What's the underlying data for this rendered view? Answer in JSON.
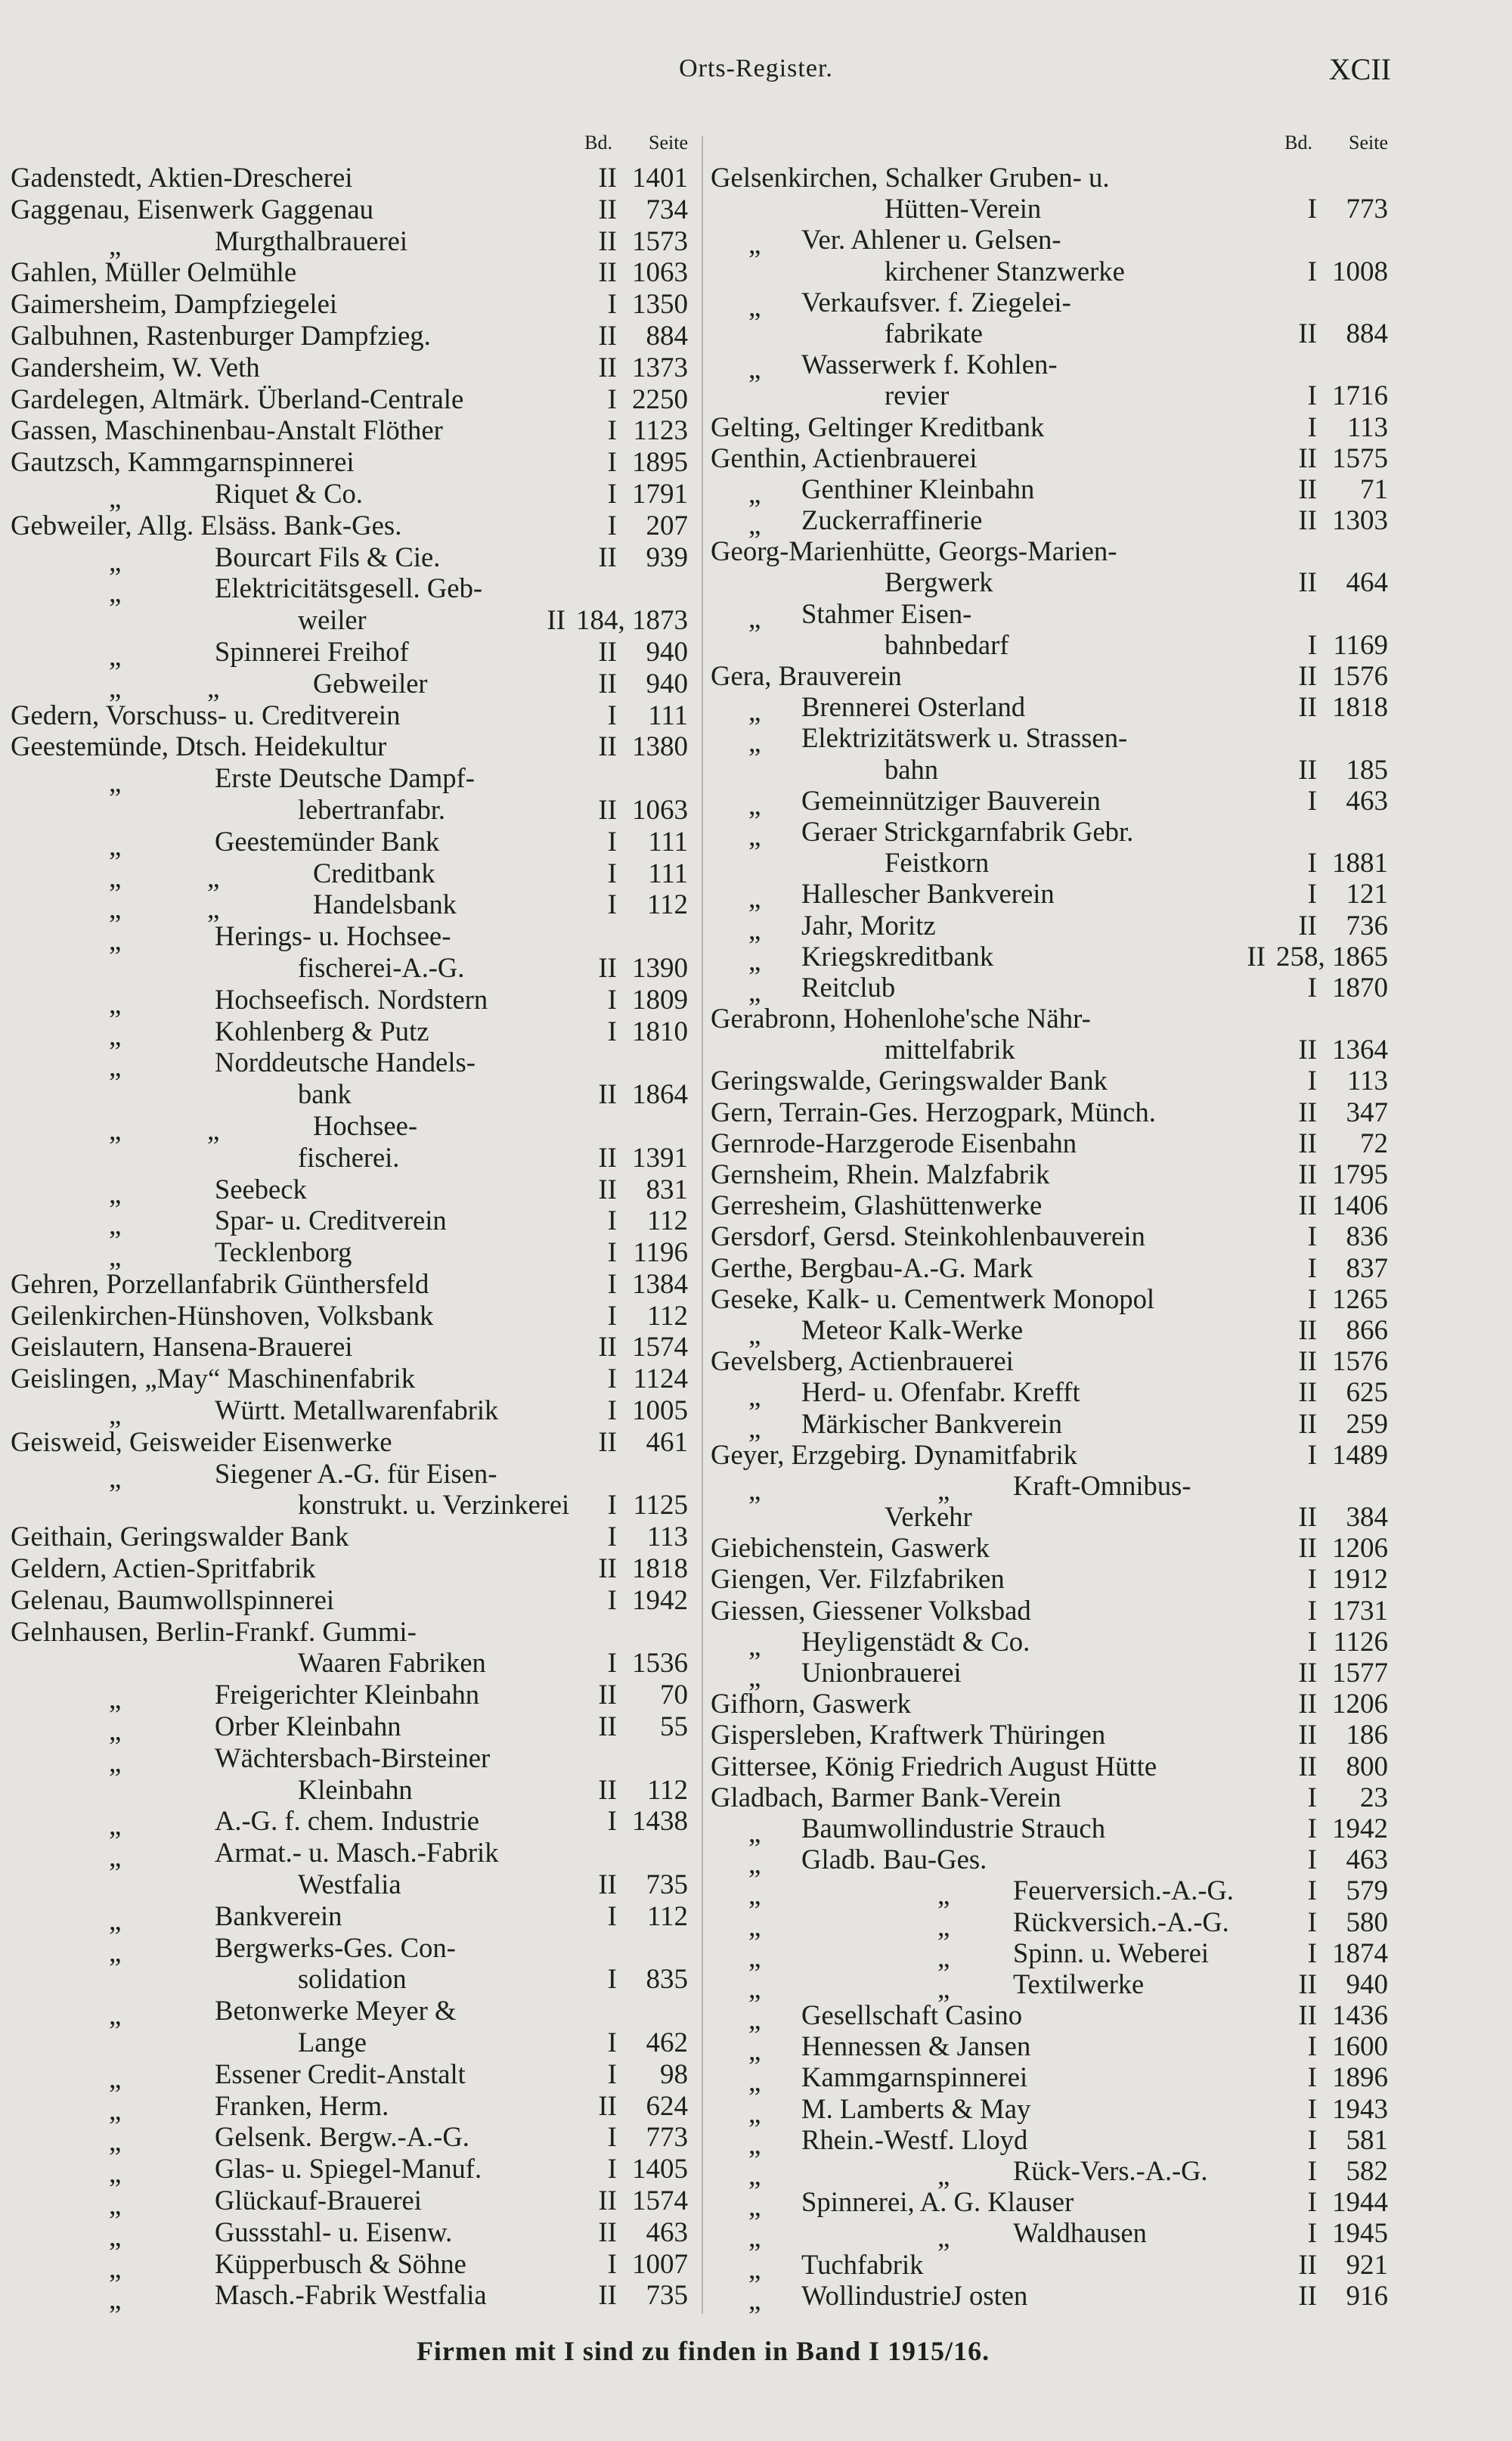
{
  "header": {
    "title": "Orts-Register.",
    "page_number": "XCII"
  },
  "column_headers": {
    "bd": "Bd.",
    "seite": "Seite"
  },
  "left": [
    {
      "t": "Gadenstedt, Aktien-Drescherei",
      "bd": "II",
      "s": "1401"
    },
    {
      "t": "Gaggenau, Eisenwerk Gaggenau",
      "bd": "II",
      "s": "734"
    },
    {
      "t": "Murgthalbrauerei",
      "bd": "II",
      "s": "1573",
      "d": 1
    },
    {
      "t": "Gahlen, Müller Oelmühle",
      "bd": "II",
      "s": "1063"
    },
    {
      "t": "Gaimersheim, Dampfziegelei",
      "bd": "I",
      "s": "1350"
    },
    {
      "t": "Galbuhnen, Rastenburger Dampfzieg.",
      "bd": "II",
      "s": "884"
    },
    {
      "t": "Gandersheim, W. Veth",
      "bd": "II",
      "s": "1373"
    },
    {
      "t": "Gardelegen, Altmärk. Überland-Centrale",
      "bd": "I",
      "s": "2250"
    },
    {
      "t": "Gassen, Maschinenbau-Anstalt Flöther",
      "bd": "I",
      "s": "1123"
    },
    {
      "t": "Gautzsch, Kammgarnspinnerei",
      "bd": "I",
      "s": "1895"
    },
    {
      "t": "Riquet & Co.",
      "bd": "I",
      "s": "1791",
      "d": 1
    },
    {
      "t": "Gebweiler, Allg. Elsäss. Bank-Ges.",
      "bd": "I",
      "s": "207"
    },
    {
      "t": "Bourcart Fils & Cie.",
      "bd": "II",
      "s": "939",
      "d": 1
    },
    {
      "t": "Elektricitätsgesell. Geb-",
      "d": 1
    },
    {
      "t": "weiler",
      "bd": "II",
      "s": "184, 1873",
      "c": true
    },
    {
      "t": "Spinnerei Freihof",
      "bd": "II",
      "s": "940",
      "d": 1
    },
    {
      "t": "Gebweiler",
      "bd": "II",
      "s": "940",
      "d": 2
    },
    {
      "t": "Gedern, Vorschuss- u. Creditverein",
      "bd": "I",
      "s": "111"
    },
    {
      "t": "Geestemünde, Dtsch. Heidekultur",
      "bd": "II",
      "s": "1380"
    },
    {
      "t": "Erste Deutsche Dampf-",
      "d": 1
    },
    {
      "t": "lebertranfabr.",
      "bd": "II",
      "s": "1063",
      "c": true
    },
    {
      "t": "Geestemünder Bank",
      "bd": "I",
      "s": "111",
      "d": 1
    },
    {
      "t": "Creditbank",
      "bd": "I",
      "s": "111",
      "d": 2
    },
    {
      "t": "Handelsbank",
      "bd": "I",
      "s": "112",
      "d": 2
    },
    {
      "t": "Herings- u. Hochsee-",
      "d": 1
    },
    {
      "t": "fischerei-A.-G.",
      "bd": "II",
      "s": "1390",
      "c": true
    },
    {
      "t": "Hochseefisch. Nordstern",
      "bd": "I",
      "s": "1809",
      "d": 1
    },
    {
      "t": "Kohlenberg & Putz",
      "bd": "I",
      "s": "1810",
      "d": 1
    },
    {
      "t": "Norddeutsche Handels-",
      "d": 1
    },
    {
      "t": "bank",
      "bd": "II",
      "s": "1864",
      "c": true
    },
    {
      "t": "Hochsee-",
      "d": 2
    },
    {
      "t": "fischerei.",
      "bd": "II",
      "s": "1391",
      "c": true
    },
    {
      "t": "Seebeck",
      "bd": "II",
      "s": "831",
      "d": 1
    },
    {
      "t": "Spar- u. Creditverein",
      "bd": "I",
      "s": "112",
      "d": 1
    },
    {
      "t": "Tecklenborg",
      "bd": "I",
      "s": "1196",
      "d": 1
    },
    {
      "t": "Gehren, Porzellanfabrik Günthersfeld",
      "bd": "I",
      "s": "1384"
    },
    {
      "t": "Geilenkirchen-Hünshoven, Volksbank",
      "bd": "I",
      "s": "112"
    },
    {
      "t": "Geislautern, Hansena-Brauerei",
      "bd": "II",
      "s": "1574"
    },
    {
      "t": "Geislingen, „May“ Maschinenfabrik",
      "bd": "I",
      "s": "1124"
    },
    {
      "t": "Württ. Metallwarenfabrik",
      "bd": "I",
      "s": "1005",
      "d": 1
    },
    {
      "t": "Geisweid, Geisweider Eisenwerke",
      "bd": "II",
      "s": "461"
    },
    {
      "t": "Siegener A.-G. für Eisen-",
      "d": 1
    },
    {
      "t": "konstrukt. u. Verzinkerei",
      "bd": "I",
      "s": "1125",
      "c": true
    },
    {
      "t": "Geithain, Geringswalder Bank",
      "bd": "I",
      "s": "113"
    },
    {
      "t": "Geldern, Actien-Spritfabrik",
      "bd": "II",
      "s": "1818"
    },
    {
      "t": "Gelenau, Baumwollspinnerei",
      "bd": "I",
      "s": "1942"
    },
    {
      "t": "Gelnhausen, Berlin-Frankf. Gummi-"
    },
    {
      "t": "Waaren Fabriken",
      "bd": "I",
      "s": "1536",
      "c": true
    },
    {
      "t": "Freigerichter Kleinbahn",
      "bd": "II",
      "s": "70",
      "d": 1
    },
    {
      "t": "Orber Kleinbahn",
      "bd": "II",
      "s": "55",
      "d": 1
    },
    {
      "t": "Wächtersbach-Birsteiner",
      "d": 1
    },
    {
      "t": "Kleinbahn",
      "bd": "II",
      "s": "112",
      "c": true
    },
    {
      "t": "A.-G. f. chem. Industrie",
      "bd": "I",
      "s": "1438",
      "d": 1
    },
    {
      "t": "Armat.- u. Masch.-Fabrik",
      "d": 1
    },
    {
      "t": "Westfalia",
      "bd": "II",
      "s": "735",
      "c": true
    },
    {
      "t": "Bankverein",
      "bd": "I",
      "s": "112",
      "d": 1
    },
    {
      "t": "Bergwerks-Ges. Con-",
      "d": 1
    },
    {
      "t": "solidation",
      "bd": "I",
      "s": "835",
      "c": true
    },
    {
      "t": "Betonwerke Meyer &",
      "d": 1
    },
    {
      "t": "Lange",
      "bd": "I",
      "s": "462",
      "c": true
    },
    {
      "t": "Essener Credit-Anstalt",
      "bd": "I",
      "s": "98",
      "d": 1
    },
    {
      "t": "Franken, Herm.",
      "bd": "II",
      "s": "624",
      "d": 1
    },
    {
      "t": "Gelsenk. Bergw.-A.-G.",
      "bd": "I",
      "s": "773",
      "d": 1
    },
    {
      "t": "Glas- u. Spiegel-Manuf.",
      "bd": "I",
      "s": "1405",
      "d": 1
    },
    {
      "t": "Glückauf-Brauerei",
      "bd": "II",
      "s": "1574",
      "d": 1
    },
    {
      "t": "Gussstahl- u. Eisenw.",
      "bd": "II",
      "s": "463",
      "d": 1
    },
    {
      "t": "Küpperbusch & Söhne",
      "bd": "I",
      "s": "1007",
      "d": 1
    },
    {
      "t": "Masch.-Fabrik Westfalia",
      "bd": "II",
      "s": "735",
      "d": 1
    }
  ],
  "right": [
    {
      "t": "Gelsenkirchen, Schalker Gruben- u."
    },
    {
      "t": "Hütten-Verein",
      "bd": "I",
      "s": "773",
      "c": true
    },
    {
      "t": "Ver. Ahlener u. Gelsen-",
      "d": 1
    },
    {
      "t": "kirchener Stanzwerke",
      "bd": "I",
      "s": "1008",
      "c": true
    },
    {
      "t": "Verkaufsver. f. Ziegelei-",
      "d": 1
    },
    {
      "t": "fabrikate",
      "bd": "II",
      "s": "884",
      "c": true
    },
    {
      "t": "Wasserwerk f. Kohlen-",
      "d": 1
    },
    {
      "t": "revier",
      "bd": "I",
      "s": "1716",
      "c": true
    },
    {
      "t": "Gelting, Geltinger Kreditbank",
      "bd": "I",
      "s": "113"
    },
    {
      "t": "Genthin, Actienbrauerei",
      "bd": "II",
      "s": "1575"
    },
    {
      "t": "Genthiner Kleinbahn",
      "bd": "II",
      "s": "71",
      "d": 1
    },
    {
      "t": "Zuckerraffinerie",
      "bd": "II",
      "s": "1303",
      "d": 1
    },
    {
      "t": "Georg-Marienhütte, Georgs-Marien-"
    },
    {
      "t": "Bergwerk",
      "bd": "II",
      "s": "464",
      "c": true
    },
    {
      "t": "Stahmer Eisen-",
      "d": 1
    },
    {
      "t": "bahnbedarf",
      "bd": "I",
      "s": "1169",
      "c": true
    },
    {
      "t": "Gera, Brauverein",
      "bd": "II",
      "s": "1576"
    },
    {
      "t": "Brennerei Osterland",
      "bd": "II",
      "s": "1818",
      "d": 1
    },
    {
      "t": "Elektrizitätswerk u. Strassen-",
      "d": 1
    },
    {
      "t": "bahn",
      "bd": "II",
      "s": "185",
      "c": true
    },
    {
      "t": "Gemeinnütziger Bauverein",
      "bd": "I",
      "s": "463",
      "d": 1
    },
    {
      "t": "Geraer Strickgarnfabrik Gebr.",
      "d": 1
    },
    {
      "t": "Feistkorn",
      "bd": "I",
      "s": "1881",
      "c": true
    },
    {
      "t": "Hallescher Bankverein",
      "bd": "I",
      "s": "121",
      "d": 1
    },
    {
      "t": "Jahr, Moritz",
      "bd": "II",
      "s": "736",
      "d": 1
    },
    {
      "t": "Kriegskreditbank",
      "bd": "II",
      "s": "258, 1865",
      "d": 1
    },
    {
      "t": "Reitclub",
      "bd": "I",
      "s": "1870",
      "d": 1
    },
    {
      "t": "Gerabronn, Hohenlohe'sche Nähr-"
    },
    {
      "t": "mittelfabrik",
      "bd": "II",
      "s": "1364",
      "c": true
    },
    {
      "t": "Geringswalde, Geringswalder Bank",
      "bd": "I",
      "s": "113"
    },
    {
      "t": "Gern, Terrain-Ges. Herzogpark, Münch.",
      "bd": "II",
      "s": "347"
    },
    {
      "t": "Gernrode-Harzgerode Eisenbahn",
      "bd": "II",
      "s": "72"
    },
    {
      "t": "Gernsheim, Rhein. Malzfabrik",
      "bd": "II",
      "s": "1795"
    },
    {
      "t": "Gerresheim, Glashüttenwerke",
      "bd": "II",
      "s": "1406"
    },
    {
      "t": "Gersdorf, Gersd. Steinkohlenbauverein",
      "bd": "I",
      "s": "836"
    },
    {
      "t": "Gerthe, Bergbau-A.-G. Mark",
      "bd": "I",
      "s": "837"
    },
    {
      "t": "Geseke, Kalk- u. Cementwerk Monopol",
      "bd": "I",
      "s": "1265"
    },
    {
      "t": "Meteor Kalk-Werke",
      "bd": "II",
      "s": "866",
      "d": 1
    },
    {
      "t": "Gevelsberg, Actienbrauerei",
      "bd": "II",
      "s": "1576"
    },
    {
      "t": "Herd- u. Ofenfabr. Krefft",
      "bd": "II",
      "s": "625",
      "d": 1
    },
    {
      "t": "Märkischer Bankverein",
      "bd": "II",
      "s": "259",
      "d": 1
    },
    {
      "t": "Geyer, Erzgebirg. Dynamitfabrik",
      "bd": "I",
      "s": "1489"
    },
    {
      "t": "Kraft-Omnibus-",
      "d": 2
    },
    {
      "t": "Verkehr",
      "bd": "II",
      "s": "384",
      "c": true
    },
    {
      "t": "Giebichenstein, Gaswerk",
      "bd": "II",
      "s": "1206"
    },
    {
      "t": "Giengen, Ver. Filzfabriken",
      "bd": "I",
      "s": "1912"
    },
    {
      "t": "Giessen, Giessener Volksbad",
      "bd": "I",
      "s": "1731"
    },
    {
      "t": "Heyligenstädt & Co.",
      "bd": "I",
      "s": "1126",
      "d": 1
    },
    {
      "t": "Unionbrauerei",
      "bd": "II",
      "s": "1577",
      "d": 1
    },
    {
      "t": "Gifhorn, Gaswerk",
      "bd": "II",
      "s": "1206"
    },
    {
      "t": "Gispersleben, Kraftwerk Thüringen",
      "bd": "II",
      "s": "186"
    },
    {
      "t": "Gittersee, König Friedrich August Hütte",
      "bd": "II",
      "s": "800"
    },
    {
      "t": "Gladbach, Barmer Bank-Verein",
      "bd": "I",
      "s": "23"
    },
    {
      "t": "Baumwollindustrie Strauch",
      "bd": "I",
      "s": "1942",
      "d": 1
    },
    {
      "t": "Gladb. Bau-Ges.",
      "bd": "I",
      "s": "463",
      "d": 1
    },
    {
      "t": "Feuerversich.-A.-G.",
      "bd": "I",
      "s": "579",
      "d": 2
    },
    {
      "t": "Rückversich.-A.-G.",
      "bd": "I",
      "s": "580",
      "d": 2
    },
    {
      "t": "Spinn. u. Weberei",
      "bd": "I",
      "s": "1874",
      "d": 2
    },
    {
      "t": "Textilwerke",
      "bd": "II",
      "s": "940",
      "d": 2
    },
    {
      "t": "Gesellschaft Casino",
      "bd": "II",
      "s": "1436",
      "d": 1
    },
    {
      "t": "Hennessen & Jansen",
      "bd": "I",
      "s": "1600",
      "d": 1
    },
    {
      "t": "Kammgarnspinnerei",
      "bd": "I",
      "s": "1896",
      "d": 1
    },
    {
      "t": "M. Lamberts & May",
      "bd": "I",
      "s": "1943",
      "d": 1
    },
    {
      "t": "Rhein.-Westf. Lloyd",
      "bd": "I",
      "s": "581",
      "d": 1
    },
    {
      "t": "Rück-Vers.-A.-G.",
      "bd": "I",
      "s": "582",
      "d": 2
    },
    {
      "t": "Spinnerei, A. G. Klauser",
      "bd": "I",
      "s": "1944",
      "d": 1
    },
    {
      "t": "Waldhausen",
      "bd": "I",
      "s": "1945",
      "d": 2
    },
    {
      "t": "Tuchfabrik",
      "bd": "II",
      "s": "921",
      "d": 1
    },
    {
      "t": "WollindustrieJ osten",
      "bd": "II",
      "s": "916",
      "d": 1
    }
  ],
  "ditto_mark": "„",
  "footer": "Firmen mit I sind zu finden in Band I 1915/16."
}
